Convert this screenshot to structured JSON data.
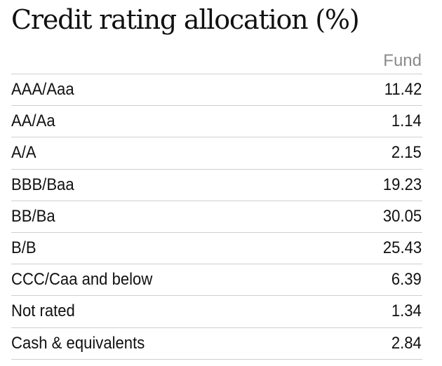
{
  "title": "Credit rating allocation (%)",
  "table": {
    "column_header": "Fund",
    "rows": [
      {
        "label": "AAA/Aaa",
        "value": "11.42"
      },
      {
        "label": "AA/Aa",
        "value": "1.14"
      },
      {
        "label": "A/A",
        "value": "2.15"
      },
      {
        "label": "BBB/Baa",
        "value": "19.23"
      },
      {
        "label": "BB/Ba",
        "value": "30.05"
      },
      {
        "label": "B/B",
        "value": "25.43"
      },
      {
        "label": "CCC/Caa and below",
        "value": "6.39"
      },
      {
        "label": "Not rated",
        "value": "1.34"
      },
      {
        "label": "Cash & equivalents",
        "value": "2.84"
      }
    ]
  }
}
